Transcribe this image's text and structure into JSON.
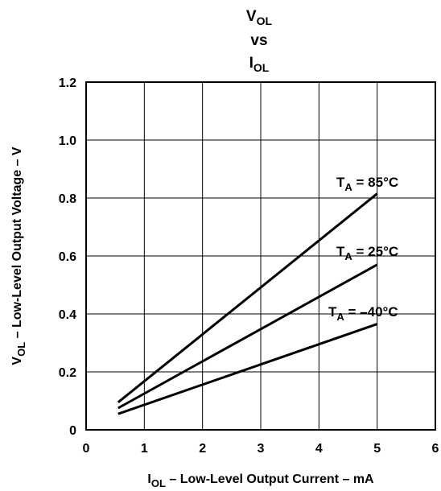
{
  "chart_data": {
    "type": "line",
    "title": {
      "line1_main": "V",
      "line1_sub": "OL",
      "line2": "vs",
      "line3_main": "I",
      "line3_sub": "OL"
    },
    "xlabel": {
      "main": "I",
      "sub": "OL",
      "rest": " – Low-Level Output Current – mA"
    },
    "ylabel": {
      "main": "V",
      "sub": "OL",
      "rest": " – Low-Level Output Voltage – V"
    },
    "xlim": [
      0,
      6
    ],
    "ylim": [
      0,
      1.2
    ],
    "x_ticks": [
      0,
      1,
      2,
      3,
      4,
      5,
      6
    ],
    "y_ticks": [
      0,
      0.2,
      0.4,
      0.6,
      0.8,
      1.0,
      1.2
    ],
    "x_tick_labels": [
      "0",
      "1",
      "2",
      "3",
      "4",
      "5",
      "6"
    ],
    "y_tick_labels": [
      "0",
      "0.2",
      "0.4",
      "0.6",
      "0.8",
      "1.0",
      "1.2"
    ],
    "grid": true,
    "series": [
      {
        "name": "T_A = 85°C",
        "label_prefix": "T",
        "label_sub": "A",
        "label_rest": " = 85°C",
        "x": [
          0.55,
          5.0
        ],
        "y": [
          0.095,
          0.815
        ]
      },
      {
        "name": "T_A = 25°C",
        "label_prefix": "T",
        "label_sub": "A",
        "label_rest": " = 25°C",
        "x": [
          0.55,
          5.0
        ],
        "y": [
          0.075,
          0.57
        ]
      },
      {
        "name": "T_A = –40°C",
        "label_prefix": "T",
        "label_sub": "A",
        "label_rest": " = –40°C",
        "x": [
          0.55,
          5.0
        ],
        "y": [
          0.055,
          0.365
        ]
      }
    ]
  }
}
